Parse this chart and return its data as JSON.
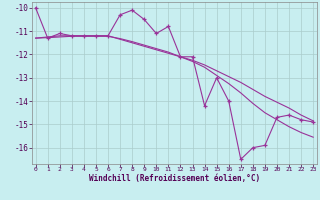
{
  "xlabel": "Windchill (Refroidissement éolien,°C)",
  "hours": [
    0,
    1,
    2,
    3,
    4,
    5,
    6,
    7,
    8,
    9,
    10,
    11,
    12,
    13,
    14,
    15,
    16,
    17,
    18,
    19,
    20,
    21,
    22,
    23
  ],
  "series1": [
    -10.0,
    -11.3,
    -11.1,
    -11.2,
    -11.2,
    -11.2,
    -11.2,
    -10.3,
    -10.1,
    -10.5,
    -11.1,
    -10.8,
    -12.1,
    -12.1,
    -14.2,
    -13.0,
    -14.0,
    -16.5,
    -16.0,
    -15.9,
    -14.7,
    -14.6,
    -14.8,
    -14.9
  ],
  "series2": [
    -11.3,
    -11.25,
    -11.2,
    -11.2,
    -11.2,
    -11.2,
    -11.2,
    -11.35,
    -11.5,
    -11.65,
    -11.8,
    -11.95,
    -12.1,
    -12.25,
    -12.45,
    -12.7,
    -12.95,
    -13.2,
    -13.5,
    -13.8,
    -14.05,
    -14.3,
    -14.6,
    -14.85
  ],
  "series3": [
    -11.3,
    -11.28,
    -11.25,
    -11.22,
    -11.22,
    -11.22,
    -11.22,
    -11.32,
    -11.45,
    -11.6,
    -11.75,
    -11.9,
    -12.1,
    -12.3,
    -12.55,
    -12.9,
    -13.25,
    -13.65,
    -14.1,
    -14.5,
    -14.8,
    -15.1,
    -15.35,
    -15.55
  ],
  "line_color": "#993399",
  "bg_color": "#c8eef0",
  "grid_color": "#aacccc",
  "ylim": [
    -16.7,
    -9.75
  ],
  "yticks": [
    -10,
    -11,
    -12,
    -13,
    -14,
    -15,
    -16
  ],
  "xticks": [
    0,
    1,
    2,
    3,
    4,
    5,
    6,
    7,
    8,
    9,
    10,
    11,
    12,
    13,
    14,
    15,
    16,
    17,
    18,
    19,
    20,
    21,
    22,
    23
  ]
}
